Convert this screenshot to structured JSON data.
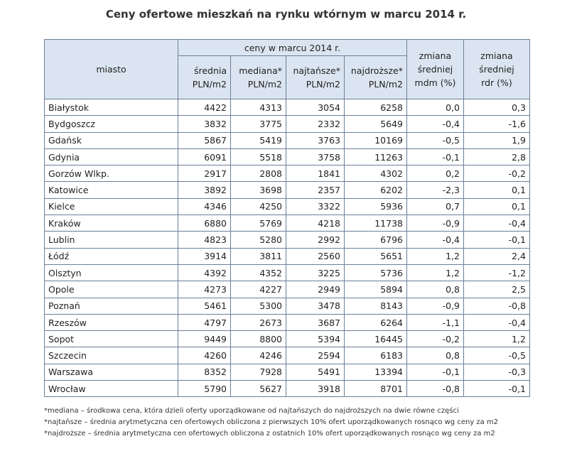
{
  "header": {
    "title": "Ceny ofertowe mieszkań na rynku wtórnym w marcu 2014 r."
  },
  "table": {
    "group_header": "ceny w marcu 2014 r.",
    "headers": [
      [
        "miasto"
      ],
      [
        "średnia",
        "PLN/m2"
      ],
      [
        "mediana*",
        "PLN/m2"
      ],
      [
        "najtańsze*",
        "PLN/m2"
      ],
      [
        "najdroższe*",
        "PLN/m2"
      ],
      [
        "zmiana",
        "średniej",
        "mdm (%)"
      ],
      [
        "zmiana",
        "średniej",
        "rdr (%)"
      ]
    ],
    "rows": [
      [
        "Białystok",
        "4422",
        "4313",
        "3054",
        "6258",
        "0,0",
        "0,3"
      ],
      [
        "Bydgoszcz",
        "3832",
        "3775",
        "2332",
        "5649",
        "-0,4",
        "-1,6"
      ],
      [
        "Gdańsk",
        "5867",
        "5419",
        "3763",
        "10169",
        "-0,5",
        "1,9"
      ],
      [
        "Gdynia",
        "6091",
        "5518",
        "3758",
        "11263",
        "-0,1",
        "2,8"
      ],
      [
        "Gorzów Wlkp.",
        "2917",
        "2808",
        "1841",
        "4302",
        "0,2",
        "-0,2"
      ],
      [
        "Katowice",
        "3892",
        "3698",
        "2357",
        "6202",
        "-2,3",
        "0,1"
      ],
      [
        "Kielce",
        "4346",
        "4250",
        "3322",
        "5936",
        "0,7",
        "0,1"
      ],
      [
        "Kraków",
        "6880",
        "5769",
        "4218",
        "11738",
        "-0,9",
        "-0,4"
      ],
      [
        "Lublin",
        "4823",
        "5280",
        "2992",
        "6796",
        "-0,4",
        "-0,1"
      ],
      [
        "Łódź",
        "3914",
        "3811",
        "2560",
        "5651",
        "1,2",
        "2,4"
      ],
      [
        "Olsztyn",
        "4392",
        "4352",
        "3225",
        "5736",
        "1,2",
        "-1,2"
      ],
      [
        "Opole",
        "4273",
        "4227",
        "2949",
        "5894",
        "0,8",
        "2,5"
      ],
      [
        "Poznań",
        "5461",
        "5300",
        "3478",
        "8143",
        "-0,9",
        "-0,8"
      ],
      [
        "Rzeszów",
        "4797",
        "2673",
        "3687",
        "6264",
        "-1,1",
        "-0,4"
      ],
      [
        "Sopot",
        "9449",
        "8800",
        "5394",
        "16445",
        "-0,2",
        "1,2"
      ],
      [
        "Szczecin",
        "4260",
        "4246",
        "2594",
        "6183",
        "0,8",
        "-0,5"
      ],
      [
        "Warszawa",
        "8352",
        "7928",
        "5491",
        "13394",
        "-0,1",
        "-0,3"
      ],
      [
        "Wrocław",
        "5790",
        "5627",
        "3918",
        "8701",
        "-0,8",
        "-0,1"
      ]
    ]
  },
  "footnotes": [
    "*mediana – środkowa cena, która dzieli oferty uporządkowane od najtańszych do najdroższych na dwie równe części",
    "*najtańsze – średnia arytmetyczna cen ofertowych obliczona z pierwszych 10% ofert uporządkowanych rosnąco wg ceny za m2",
    "*najdroższe – średnia arytmetyczna cen ofertowych obliczona z ostatnich 10% ofert uporządkowanych rosnąco wg ceny za m2"
  ]
}
